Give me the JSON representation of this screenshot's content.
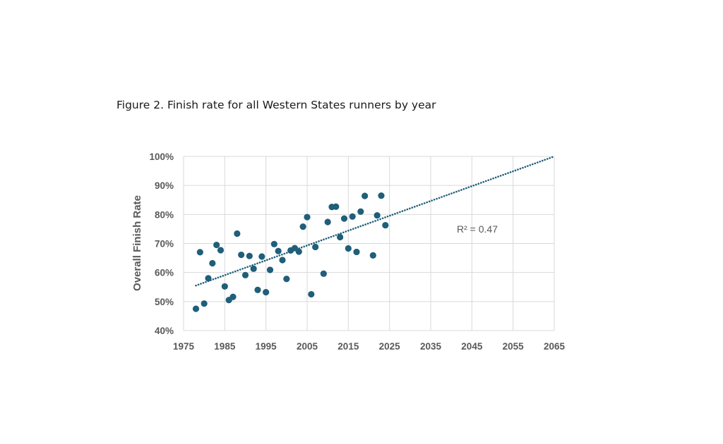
{
  "caption": "Figure 2. Finish rate for all Western States runners by year",
  "chart_data": {
    "type": "scatter",
    "title": "",
    "xlabel": "",
    "ylabel": "Overall Finish Rate",
    "xlim": [
      1975,
      2065
    ],
    "ylim": [
      0.4,
      1.0
    ],
    "x_ticks": [
      "1975",
      "1985",
      "1995",
      "2005",
      "2015",
      "2025",
      "2035",
      "2045",
      "2055",
      "2065"
    ],
    "y_ticks": [
      "40%",
      "50%",
      "60%",
      "70%",
      "80%",
      "90%",
      "100%"
    ],
    "grid": true,
    "legend": "none",
    "marker_color": "#1f5f7a",
    "trendline": {
      "type": "linear",
      "style": "dotted",
      "color": "#1f5f7a",
      "points": [
        [
          1978,
          0.555
        ],
        [
          2065,
          1.0
        ]
      ],
      "annotation": "R² = 0.47"
    },
    "points": [
      [
        1978,
        0.475
      ],
      [
        1979,
        0.67
      ],
      [
        1980,
        0.493
      ],
      [
        1981,
        0.58
      ],
      [
        1982,
        0.632
      ],
      [
        1983,
        0.695
      ],
      [
        1984,
        0.677
      ],
      [
        1985,
        0.552
      ],
      [
        1986,
        0.505
      ],
      [
        1987,
        0.516
      ],
      [
        1988,
        0.734
      ],
      [
        1989,
        0.661
      ],
      [
        1990,
        0.591
      ],
      [
        1991,
        0.657
      ],
      [
        1992,
        0.613
      ],
      [
        1993,
        0.54
      ],
      [
        1994,
        0.655
      ],
      [
        1995,
        0.532
      ],
      [
        1996,
        0.609
      ],
      [
        1997,
        0.698
      ],
      [
        1998,
        0.674
      ],
      [
        1999,
        0.643
      ],
      [
        2000,
        0.578
      ],
      [
        2001,
        0.676
      ],
      [
        2002,
        0.684
      ],
      [
        2003,
        0.672
      ],
      [
        2004,
        0.758
      ],
      [
        2005,
        0.791
      ],
      [
        2006,
        0.525
      ],
      [
        2007,
        0.688
      ],
      [
        2009,
        0.596
      ],
      [
        2010,
        0.774
      ],
      [
        2011,
        0.826
      ],
      [
        2012,
        0.827
      ],
      [
        2013,
        0.722
      ],
      [
        2014,
        0.786
      ],
      [
        2015,
        0.683
      ],
      [
        2016,
        0.793
      ],
      [
        2017,
        0.671
      ],
      [
        2018,
        0.81
      ],
      [
        2019,
        0.864
      ],
      [
        2021,
        0.659
      ],
      [
        2022,
        0.797
      ],
      [
        2023,
        0.865
      ],
      [
        2024,
        0.763
      ]
    ]
  }
}
